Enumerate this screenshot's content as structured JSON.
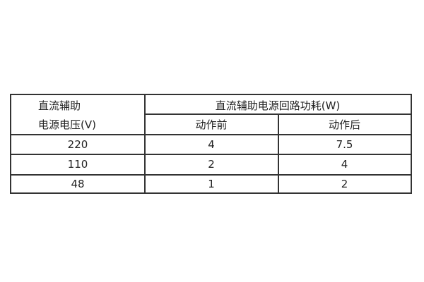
{
  "table": {
    "header": {
      "col1_line1": "直流辅助",
      "col1_line2": "电源电压(V)",
      "group": "直流辅助电源回路功耗(W)",
      "sub": [
        "动作前",
        "动作后"
      ]
    },
    "rows": [
      [
        "220",
        "4",
        "7.5"
      ],
      [
        "110",
        "2",
        "4"
      ],
      [
        "48",
        "1",
        "2"
      ]
    ]
  }
}
